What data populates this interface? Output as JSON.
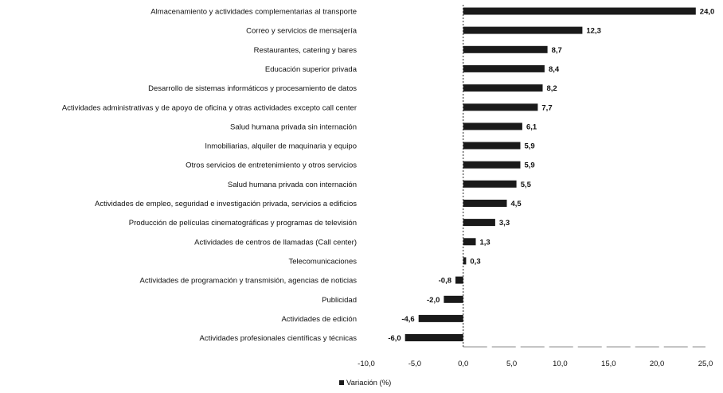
{
  "chart_data": {
    "type": "bar",
    "orientation": "horizontal",
    "categories": [
      "Almacenamiento y actividades complementarias al transporte",
      "Correo y servicios de mensajería",
      "Restaurantes, catering y bares",
      "Educación superior privada",
      "Desarrollo de sistemas informáticos y procesamiento de datos",
      "Actividades administrativas y de apoyo de oficina y otras actividades excepto call center",
      "Salud humana privada sin internación",
      "Inmobiliarias, alquiler de maquinaria y equipo",
      "Otros servicios de entretenimiento y otros servicios",
      "Salud humana privada con internación",
      "Actividades de empleo, seguridad e investigación privada, servicios a edificios",
      "Producción de películas cinematográficas y programas de televisión",
      "Actividades de centros de llamadas (Call center)",
      "Telecomunicaciones",
      "Actividades de programación y transmisión, agencias de noticias",
      "Publicidad",
      "Actividades de edición",
      "Actividades profesionales científicas y técnicas"
    ],
    "series": [
      {
        "name": "Variación (%)",
        "values": [
          24.0,
          12.3,
          8.7,
          8.4,
          8.2,
          7.7,
          6.1,
          5.9,
          5.9,
          5.5,
          4.5,
          3.3,
          1.3,
          0.3,
          -0.8,
          -2.0,
          -4.6,
          -6.0
        ],
        "value_labels": [
          "24,0",
          "12,3",
          "8,7",
          "8,4",
          "8,2",
          "7,7",
          "6,1",
          "5,9",
          "5,9",
          "5,5",
          "4,5",
          "3,3",
          "1,3",
          "0,3",
          "-0,8",
          "-2,0",
          "-4,6",
          "-6,0"
        ]
      }
    ],
    "xlim": [
      -10,
      25
    ],
    "xticks": [
      -10,
      -5,
      0,
      5,
      10,
      15,
      20,
      25
    ],
    "xtick_labels": [
      "-10,0",
      "-5,0",
      "0,0",
      "5,0",
      "10,0",
      "15,0",
      "20,0",
      "25,0"
    ],
    "bar_color": "#1a1a1a",
    "legend": {
      "label": "Variación (%)",
      "position": "bottom"
    },
    "grid": false
  }
}
